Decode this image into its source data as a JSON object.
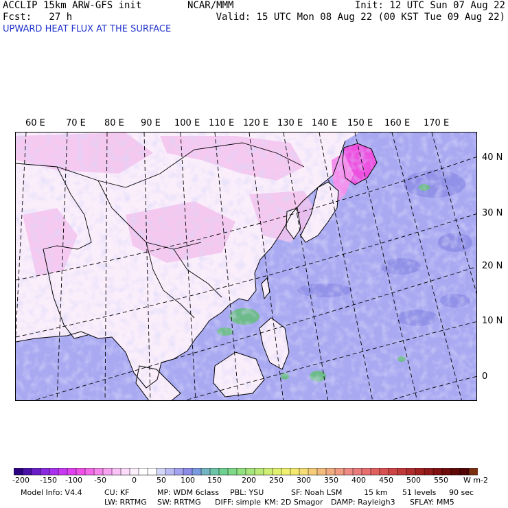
{
  "header": {
    "model": "ACCLIP 15km ARW-GFS init",
    "center": "NCAR/MMM",
    "init": "Init: 12 UTC Sun 07 Aug 22",
    "fcst": "Fcst:   27 h",
    "valid": "Valid: 15 UTC Mon 08 Aug 22 (00 KST Tue 09 Aug 22)",
    "title": "UPWARD HEAT FLUX AT THE SURFACE"
  },
  "map": {
    "lon_labels": [
      "60 E",
      "70 E",
      "80 E",
      "90 E",
      "100 E",
      "110 E",
      "120 E",
      "130 E",
      "140 E",
      "150 E",
      "160 E",
      "170 E"
    ],
    "lat_labels": [
      "40 N",
      "30 N",
      "20 N",
      "10 N",
      "0"
    ],
    "colors": {
      "land_base": "#fbeefb",
      "land_pink": "#f6c8f0",
      "land_magenta": "#ee55e0",
      "ocean": "#a9a9f2",
      "ocean_dark": "#8888e8",
      "convection": "#6dbb8a",
      "coast": "#000000",
      "grid": "#000000"
    }
  },
  "colorbar": {
    "unit": "W m-2",
    "labels": [
      "-200",
      "-150",
      "-100",
      "-50",
      "0",
      "50",
      "100",
      "150",
      "200",
      "250",
      "300",
      "350",
      "400",
      "450",
      "500",
      "550"
    ],
    "colors": [
      "#2a0080",
      "#4a10a8",
      "#6a1ec8",
      "#8a28e0",
      "#a830ee",
      "#c838f2",
      "#e040f0",
      "#f050e8",
      "#f468ec",
      "#f686ee",
      "#f8a4f2",
      "#fac2f6",
      "#fcdcfa",
      "#fdf0fc",
      "#ffffff",
      "#ffffff",
      "#d6d6f8",
      "#bcbcf4",
      "#a2a2ee",
      "#8c8ce8",
      "#7a9ae0",
      "#72b4c0",
      "#6cc4a8",
      "#6ed090",
      "#7ed888",
      "#92e080",
      "#a6e67a",
      "#bcea78",
      "#d0ee74",
      "#e2f070",
      "#f0f070",
      "#f4e870",
      "#f6dc74",
      "#f6cc78",
      "#f4bc7c",
      "#f2ac80",
      "#f09c82",
      "#ee8a82",
      "#ec7c7c",
      "#e86e70",
      "#e06060",
      "#d85050",
      "#cc4444",
      "#c03838",
      "#b02c2c",
      "#a02020",
      "#901818",
      "#801010",
      "#700c0c",
      "#600808",
      "#500404",
      "#7a3010"
    ]
  },
  "footer": {
    "line1": [
      "Model Info: V4.4",
      "CU: KF",
      "MP: WDM 6class",
      "PBL: YSU",
      "SF: Noah LSM",
      "15 km",
      "51 levels",
      "90 sec"
    ],
    "line2": [
      "LW: RRTMG",
      "SW: RRTMG",
      "DIFF: simple",
      "KM: 2D Smagor",
      "DAMP: Rayleigh3",
      "SFLAY: MM5"
    ]
  }
}
